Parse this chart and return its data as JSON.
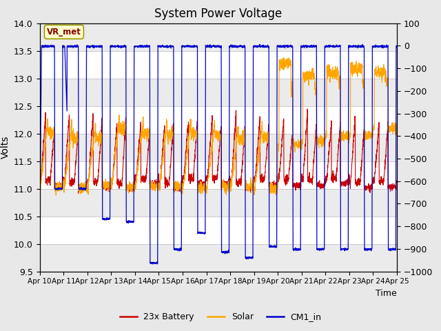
{
  "title": "System Power Voltage",
  "xlabel": "Time",
  "ylabel_left": "Volts",
  "ylim_left": [
    9.5,
    14.0
  ],
  "ylim_right": [
    -1000,
    100
  ],
  "yticks_left": [
    9.5,
    10.0,
    10.5,
    11.0,
    11.5,
    12.0,
    12.5,
    13.0,
    13.5,
    14.0
  ],
  "yticks_right": [
    -1000,
    -900,
    -800,
    -700,
    -600,
    -500,
    -400,
    -300,
    -200,
    -100,
    0,
    100
  ],
  "xtick_labels": [
    "Apr 10",
    "Apr 11",
    "Apr 12",
    "Apr 13",
    "Apr 14",
    "Apr 15",
    "Apr 16",
    "Apr 17",
    "Apr 18",
    "Apr 19",
    "Apr 20",
    "Apr 21",
    "Apr 22",
    "Apr 23",
    "Apr 24",
    "Apr 25"
  ],
  "legend_entries": [
    "23x Battery",
    "Solar",
    "CM1_in"
  ],
  "legend_colors": [
    "#cc0000",
    "#ffa500",
    "#0000cc"
  ],
  "vr_met_box_facecolor": "#ffffcc",
  "vr_met_border_color": "#999900",
  "vr_met_text_color": "#880000",
  "battery_color": "#cc0000",
  "solar_color": "#ffa500",
  "cm1_color": "#0000cc",
  "title_fontsize": 12,
  "background_color": "#e8e8e8",
  "plot_bg_color": "#ffffff",
  "shading_color": "#d8d8d8",
  "grid_color": "#c0c0c0"
}
